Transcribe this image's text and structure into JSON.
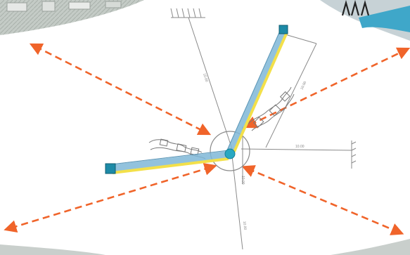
{
  "diagram": {
    "colors": {
      "background": "#ffffff",
      "corner_shading": "#c9cfcc",
      "arrows": "#f0642a",
      "beam_blue": "#7fb8d8",
      "beam_yellow": "#f3e04a",
      "hub": "#29a8c2",
      "endpoint": "#1d8aa7",
      "linework": "#8a8a8a"
    },
    "icons": [
      "double-headed-arrow-icon",
      "hatched-wall-anchor-icon",
      "square-anchor-icon",
      "hub-node-icon"
    ],
    "dimension_labels": [
      "10.00",
      "10.00",
      "10.00",
      "10.00",
      "10.00"
    ]
  }
}
